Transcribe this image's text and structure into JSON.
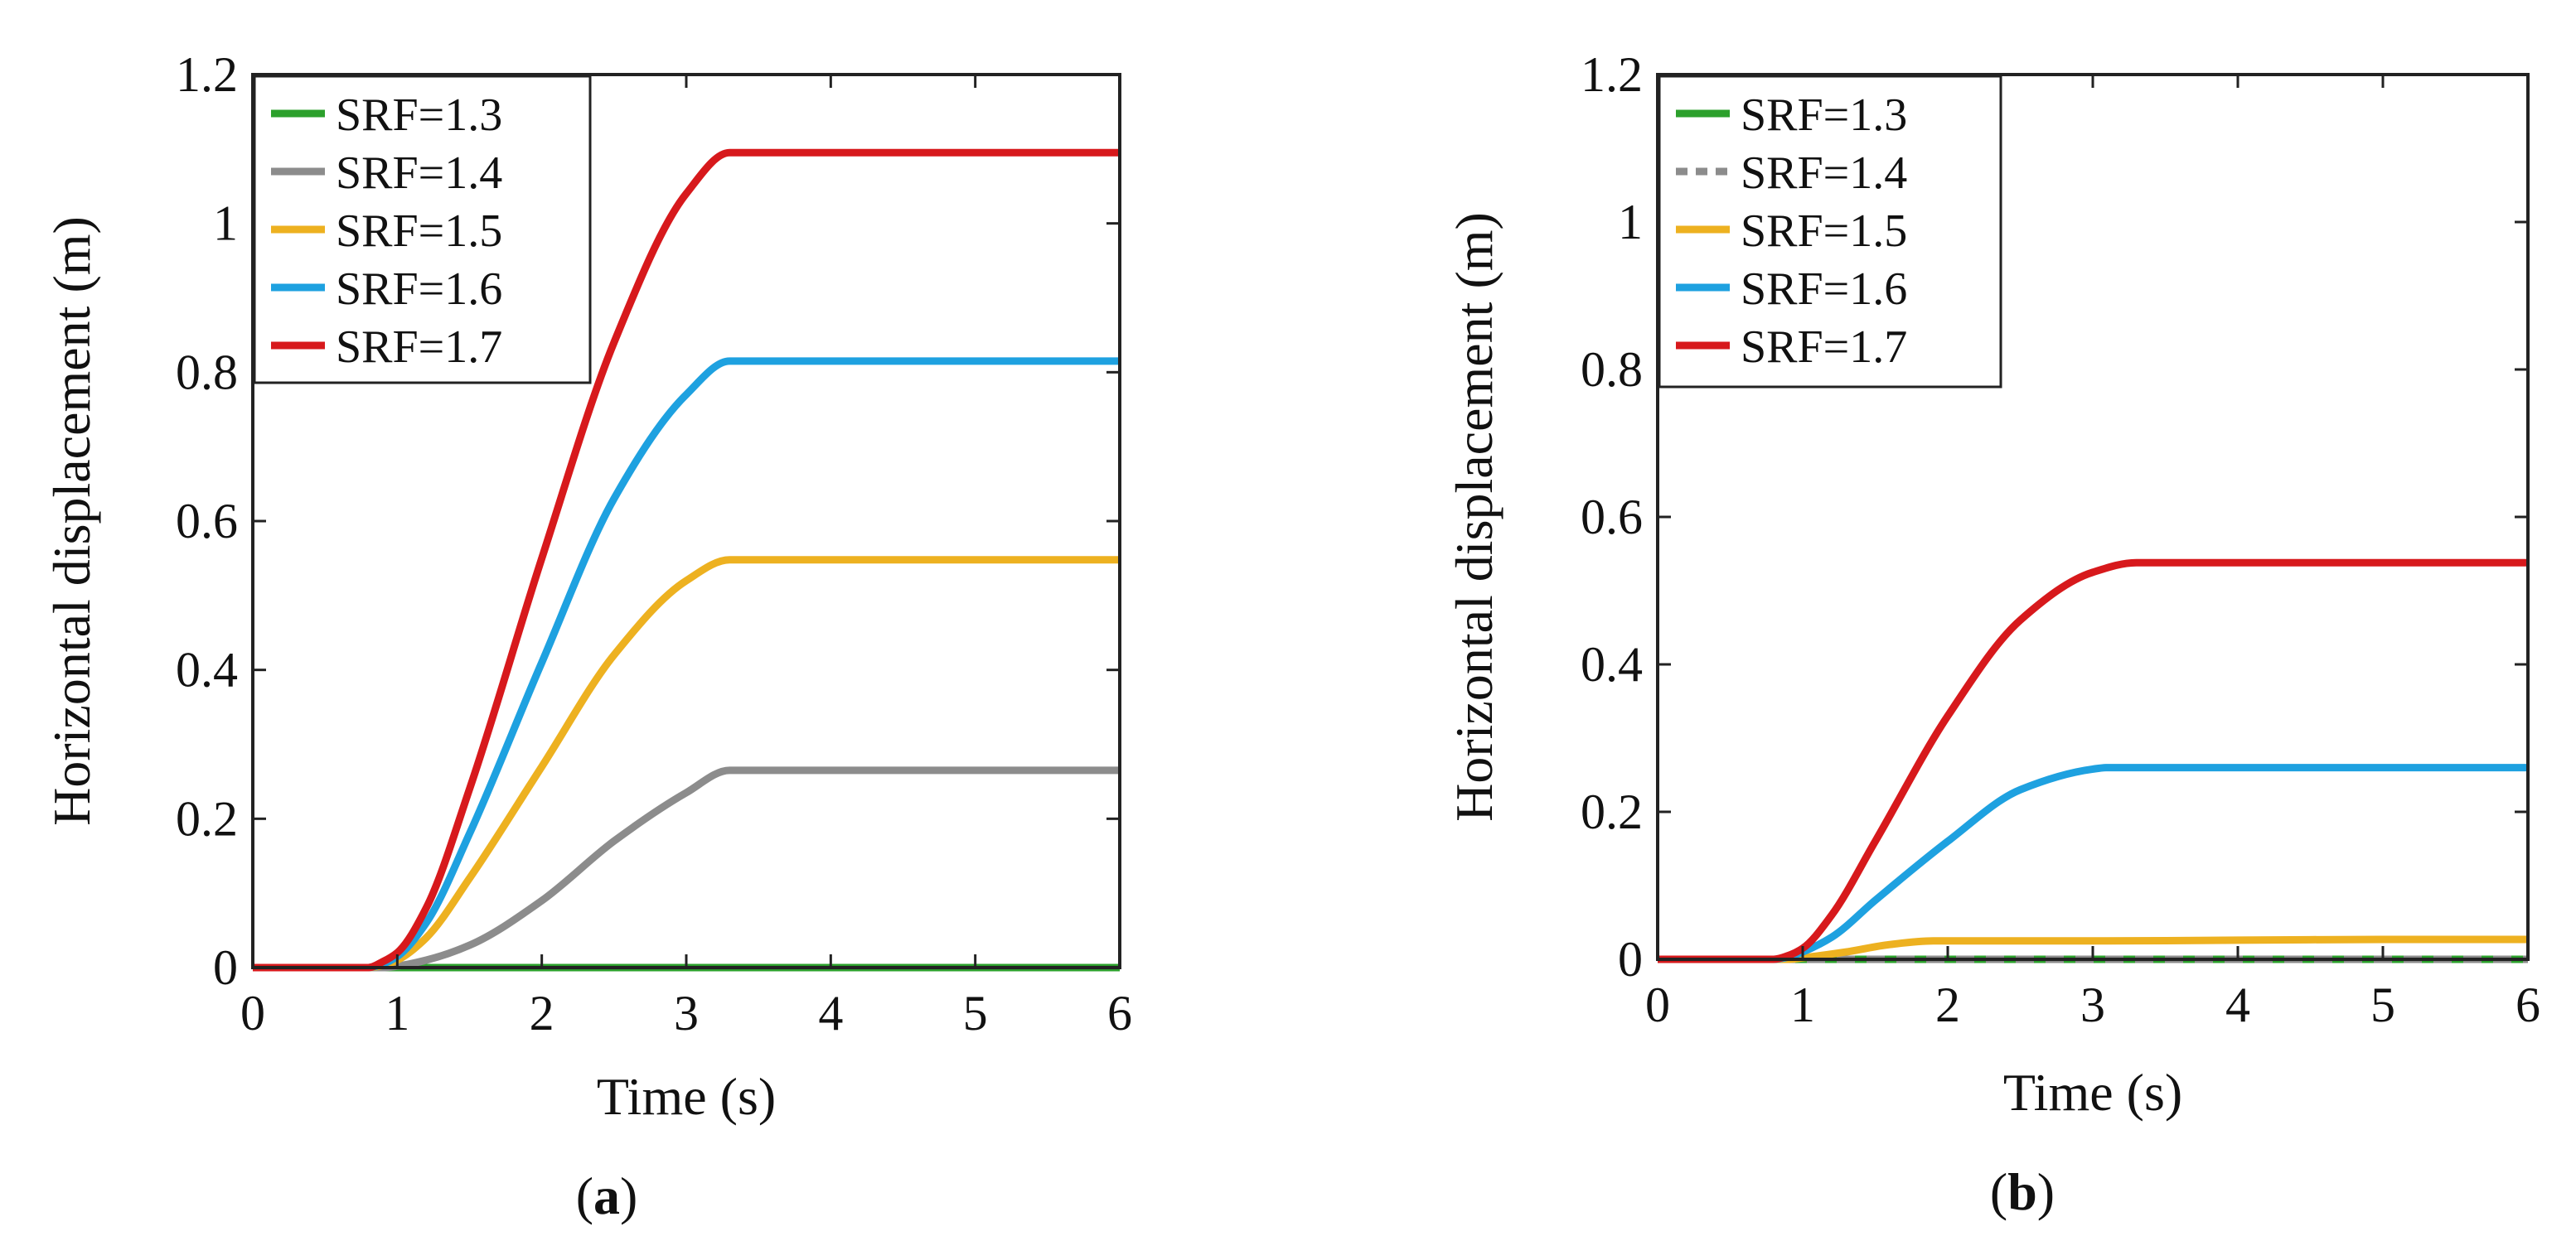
{
  "chart_data": [
    {
      "type": "line",
      "panel": "a",
      "caption_prefix": "(",
      "caption_letter": "a",
      "caption_suffix": ")",
      "xlabel": "Time (s)",
      "ylabel": "Horizontal displacement (m)",
      "xlim": [
        0,
        6
      ],
      "ylim": [
        0,
        1.2
      ],
      "xticks": [
        0,
        1,
        2,
        3,
        4,
        5,
        6
      ],
      "yticks": [
        0,
        0.2,
        0.4,
        0.6,
        0.8,
        1,
        1.2
      ],
      "ytick_labels": [
        "0",
        "0.2",
        "0.4",
        "0.6",
        "0.8",
        "1",
        "1.2"
      ],
      "legend_position": "top-left",
      "series": [
        {
          "name": "SRF=1.3",
          "color": "#2ca02c",
          "dashed": false,
          "x": [
            0,
            0.9,
            1,
            2,
            3,
            3.3,
            6
          ],
          "y": [
            0,
            0,
            0,
            0,
            0,
            0,
            0
          ]
        },
        {
          "name": "SRF=1.4",
          "color": "#8c8c8c",
          "dashed": false,
          "x": [
            0,
            0.9,
            1,
            1.2,
            1.5,
            2,
            2.5,
            3,
            3.3,
            4,
            5,
            6
          ],
          "y": [
            0,
            0,
            0.002,
            0.01,
            0.03,
            0.09,
            0.17,
            0.235,
            0.265,
            0.265,
            0.265,
            0.265
          ]
        },
        {
          "name": "SRF=1.5",
          "color": "#edb120",
          "dashed": false,
          "x": [
            0,
            0.8,
            0.9,
            1,
            1.2,
            1.5,
            2,
            2.5,
            3,
            3.3,
            4,
            5,
            6
          ],
          "y": [
            0,
            0,
            0.003,
            0.01,
            0.04,
            0.12,
            0.27,
            0.42,
            0.52,
            0.548,
            0.548,
            0.548,
            0.548
          ]
        },
        {
          "name": "SRF=1.6",
          "color": "#1ea1e0",
          "dashed": false,
          "x": [
            0,
            0.8,
            0.9,
            1,
            1.2,
            1.5,
            2,
            2.5,
            3,
            3.3,
            4,
            5,
            6
          ],
          "y": [
            0,
            0,
            0.005,
            0.015,
            0.06,
            0.18,
            0.41,
            0.63,
            0.77,
            0.815,
            0.815,
            0.815,
            0.815
          ]
        },
        {
          "name": "SRF=1.7",
          "color": "#d7191c",
          "dashed": false,
          "x": [
            0,
            0.8,
            0.9,
            1,
            1.2,
            1.5,
            2,
            2.5,
            3,
            3.3,
            4,
            5,
            6
          ],
          "y": [
            0,
            0,
            0.008,
            0.02,
            0.08,
            0.24,
            0.55,
            0.84,
            1.04,
            1.095,
            1.095,
            1.095,
            1.095
          ]
        }
      ]
    },
    {
      "type": "line",
      "panel": "b",
      "caption_prefix": "(",
      "caption_letter": "b",
      "caption_suffix": ")",
      "xlabel": "Time (s)",
      "ylabel": "Horizontal displacement (m)",
      "xlim": [
        0,
        6
      ],
      "ylim": [
        0,
        1.2
      ],
      "xticks": [
        0,
        1,
        2,
        3,
        4,
        5,
        6
      ],
      "yticks": [
        0,
        0.2,
        0.4,
        0.6,
        0.8,
        1,
        1.2
      ],
      "ytick_labels": [
        "0",
        "0.2",
        "0.4",
        "0.6",
        "0.8",
        "1",
        "1.2"
      ],
      "legend_position": "top-left",
      "series": [
        {
          "name": "SRF=1.3",
          "color": "#2ca02c",
          "dashed": false,
          "x": [
            0,
            1,
            2,
            3,
            6
          ],
          "y": [
            0,
            0,
            0,
            0,
            0
          ]
        },
        {
          "name": "SRF=1.4",
          "color": "#8c8c8c",
          "dashed": true,
          "x": [
            0,
            1,
            2,
            3,
            6
          ],
          "y": [
            0,
            0,
            0,
            0,
            0
          ]
        },
        {
          "name": "SRF=1.5",
          "color": "#edb120",
          "dashed": false,
          "x": [
            0,
            0.9,
            1,
            1.3,
            1.6,
            1.9,
            2,
            3,
            4,
            5,
            6
          ],
          "y": [
            0,
            0,
            0.002,
            0.01,
            0.02,
            0.025,
            0.025,
            0.025,
            0.026,
            0.027,
            0.027
          ]
        },
        {
          "name": "SRF=1.6",
          "color": "#1ea1e0",
          "dashed": false,
          "x": [
            0,
            0.8,
            0.9,
            1,
            1.2,
            1.5,
            2,
            2.5,
            3,
            3.1,
            4,
            5,
            6
          ],
          "y": [
            0,
            0,
            0.003,
            0.01,
            0.03,
            0.08,
            0.16,
            0.23,
            0.258,
            0.26,
            0.26,
            0.26,
            0.26
          ]
        },
        {
          "name": "SRF=1.7",
          "color": "#d7191c",
          "dashed": false,
          "x": [
            0,
            0.8,
            0.9,
            1,
            1.2,
            1.5,
            2,
            2.5,
            3,
            3.3,
            4,
            5,
            6
          ],
          "y": [
            0,
            0,
            0.005,
            0.015,
            0.06,
            0.16,
            0.33,
            0.46,
            0.525,
            0.538,
            0.538,
            0.538,
            0.538
          ]
        }
      ]
    }
  ]
}
